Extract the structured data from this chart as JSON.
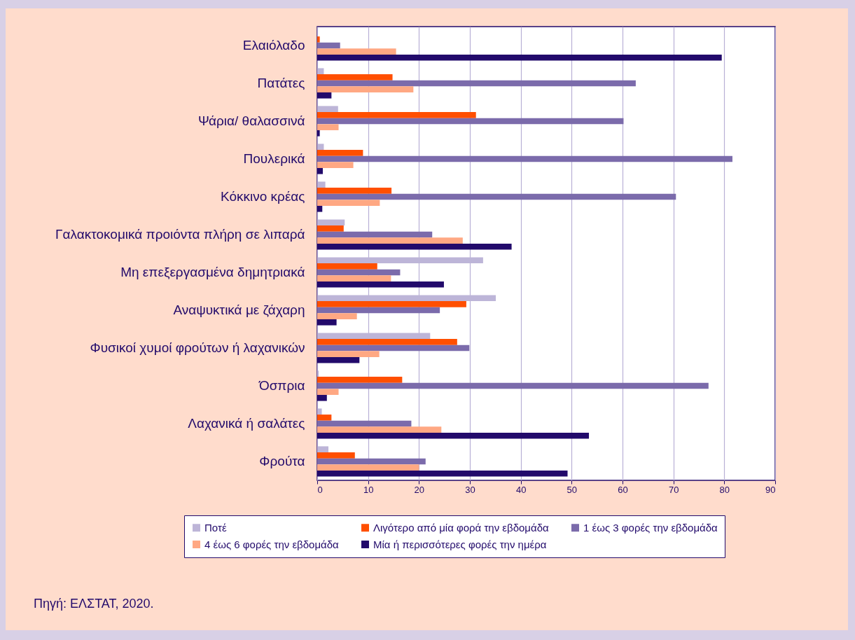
{
  "chart_data": {
    "type": "bar",
    "orientation": "horizontal",
    "categories": [
      "Ελαιόλαδο",
      "Πατάτες",
      "Ψάρια/ θαλασσινά",
      "Πουλερικά",
      "Κόκκινο κρέας",
      "Γαλακτοκομικά προιόντα πλήρη σε λιπαρά",
      "Μη επεξεργασμένα δημητριακά",
      "Αναψυκτικά με ζάχαρη",
      "Φυσικοί χυμοί φρούτων ή λαχανικών",
      "Όσπρια",
      "Λαχανικά ή σαλάτες",
      "Φρούτα"
    ],
    "series": [
      {
        "name": "Ποτέ",
        "color": "#bdb5d8",
        "values": [
          null,
          1.3,
          4.1,
          1.3,
          1.6,
          5.4,
          32.6,
          35.1,
          22.2,
          0.3,
          0.9,
          2.2
        ]
      },
      {
        "name": "Λιγότερο από μία φορά την εβδομάδα",
        "color": "#ff4f00",
        "values": [
          0.5,
          14.8,
          31.2,
          9.0,
          14.6,
          5.2,
          11.8,
          29.3,
          27.5,
          16.7,
          2.8,
          7.4
        ]
      },
      {
        "name": "1 έως 3 φορές την εβδομάδα",
        "color": "#7b6bab",
        "values": [
          4.5,
          62.6,
          60.2,
          81.6,
          70.5,
          22.6,
          16.3,
          24.1,
          29.9,
          76.9,
          18.5,
          21.3
        ]
      },
      {
        "name": "4 έως 6 φορές την εβδομάδα",
        "color": "#ffa883",
        "values": [
          15.5,
          18.9,
          4.2,
          7.1,
          12.3,
          28.6,
          14.5,
          7.8,
          12.2,
          4.2,
          24.4,
          20.0
        ]
      },
      {
        "name": "Μία ή περισσότερες φορές την ημέρα",
        "color": "#220a6b",
        "values": [
          79.5,
          2.8,
          0.5,
          1.1,
          1.0,
          38.2,
          24.9,
          3.8,
          8.3,
          1.9,
          53.4,
          49.2
        ]
      }
    ],
    "xlim": [
      0,
      90
    ],
    "xticks": [
      0,
      10,
      20,
      30,
      40,
      50,
      60,
      70,
      80,
      90
    ],
    "grid": "x",
    "legend": "bottom",
    "annotations": [
      "Πηγή: ΕΛΣΤΑΤ, 2020."
    ]
  }
}
